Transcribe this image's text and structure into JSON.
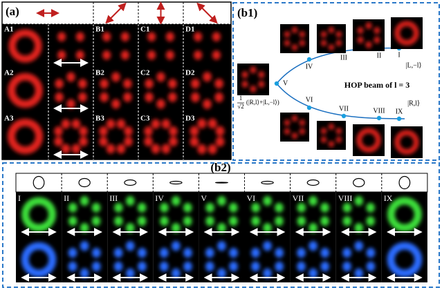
{
  "panel_a": {
    "label": "(a)",
    "rows": [
      [
        "A1",
        "B1",
        "C1",
        "D1"
      ],
      [
        "A2",
        "B2",
        "C2",
        "D2"
      ],
      [
        "A3",
        "B3",
        "C3",
        "D3"
      ]
    ]
  },
  "panel_b1": {
    "label": "(b1)",
    "points": [
      "I",
      "II",
      "III",
      "IV",
      "V",
      "VI",
      "VII",
      "VIII",
      "IX"
    ],
    "state_top": "|L,−l⟩",
    "state_bottom": "|R,l⟩",
    "title": "HOP beam of l = 3",
    "formula_numerator": "1",
    "formula_denominator": "√2",
    "formula_body": "(|R,l⟩+|L,−l⟩)"
  },
  "panel_b2": {
    "label": "(b2)",
    "frames": [
      "I",
      "II",
      "III",
      "IV",
      "V",
      "VI",
      "VII",
      "VIII",
      "IX"
    ]
  }
}
